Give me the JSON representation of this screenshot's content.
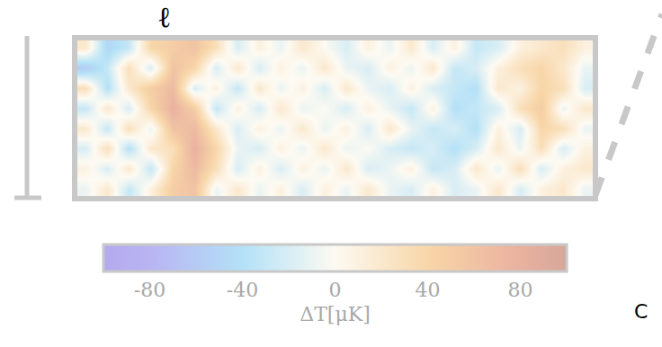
{
  "chart_data": {
    "type": "heatmap",
    "tick_labels": false,
    "annotations": [
      {
        "text": "ℓ"
      },
      {
        "text": "C"
      }
    ],
    "z": [
      [
        20,
        -50,
        -30,
        40,
        50,
        60,
        30,
        -20,
        10,
        -10,
        20,
        0,
        -20,
        10,
        -10,
        20,
        -20,
        10,
        -30,
        -20,
        10,
        20,
        30,
        10
      ],
      [
        -60,
        -30,
        30,
        -20,
        60,
        40,
        -20,
        20,
        -20,
        10,
        -10,
        20,
        -10,
        -20,
        10,
        -10,
        20,
        -30,
        -20,
        10,
        30,
        40,
        20,
        -10
      ],
      [
        30,
        -40,
        20,
        50,
        70,
        -20,
        10,
        -30,
        20,
        -10,
        10,
        -20,
        20,
        -10,
        -20,
        10,
        -20,
        -30,
        -40,
        20,
        10,
        40,
        30,
        -20
      ],
      [
        -30,
        20,
        -20,
        40,
        80,
        50,
        -30,
        10,
        -20,
        20,
        -10,
        0,
        -20,
        10,
        -10,
        -30,
        10,
        -40,
        -30,
        -20,
        30,
        50,
        -10,
        20
      ],
      [
        20,
        -30,
        30,
        -10,
        60,
        70,
        20,
        -20,
        10,
        -10,
        20,
        -10,
        10,
        -20,
        20,
        -10,
        -30,
        -20,
        -40,
        10,
        -20,
        40,
        30,
        -10
      ],
      [
        -20,
        30,
        -40,
        20,
        30,
        80,
        40,
        -10,
        -20,
        10,
        -10,
        20,
        -10,
        0,
        -20,
        -30,
        -20,
        -40,
        -20,
        20,
        -10,
        30,
        -20,
        10
      ],
      [
        10,
        -20,
        20,
        -30,
        40,
        70,
        30,
        -20,
        10,
        -20,
        10,
        -10,
        20,
        -20,
        -10,
        10,
        -30,
        -20,
        20,
        -10,
        30,
        -20,
        10,
        20
      ],
      [
        -10,
        20,
        -30,
        10,
        50,
        60,
        -10,
        20,
        -10,
        10,
        -20,
        10,
        -10,
        20,
        -10,
        -20,
        10,
        -20,
        -10,
        20,
        -20,
        10,
        20,
        -10
      ]
    ],
    "colorbar_range": [
      -100,
      100
    ],
    "colorbar_ticks": [
      -80,
      -40,
      0,
      40,
      80
    ],
    "colorbar_title": "ΔT[μK]"
  }
}
